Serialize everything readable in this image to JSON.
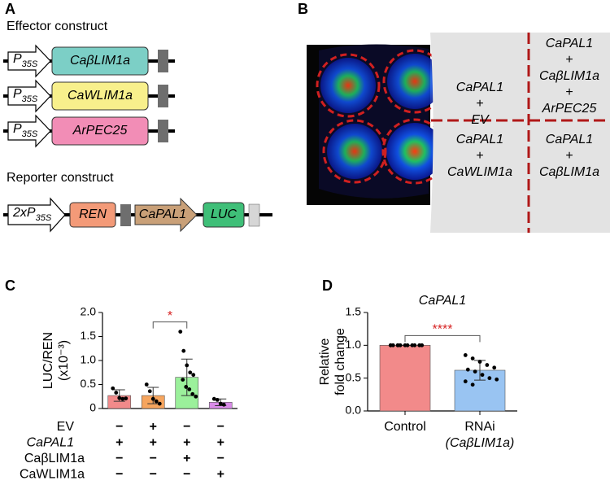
{
  "panel_a": {
    "label": "A",
    "effector_title": "Effector construct",
    "promoter": {
      "main": "P",
      "sub": "35S"
    },
    "effectors": [
      "CaβLIM1a",
      "CaWLIM1a",
      "ArPEC25"
    ],
    "reporter_title": "Reporter construct",
    "reporter_promoter": {
      "main": "2xP",
      "sub": "35S"
    },
    "reporter_parts": [
      "REN",
      "CaPAL1",
      "LUC"
    ]
  },
  "panel_b": {
    "label": "B",
    "cells": [
      [
        "CaPAL1",
        "+",
        "EV"
      ],
      [
        "CaPAL1",
        "+",
        "CaβLIM1a",
        "+",
        "ArPEC25"
      ],
      [
        "CaPAL1",
        "+",
        "CaWLIM1a"
      ],
      [
        "CaPAL1",
        "+",
        "CaβLIM1a"
      ]
    ]
  },
  "chart_data": [
    {
      "type": "bar",
      "panel_label": "C",
      "y_label": "LUC/REN",
      "y_label_2": "(x10⁻³)",
      "values": [
        0.27,
        0.27,
        0.65,
        0.13
      ],
      "errors": [
        0.12,
        0.17,
        0.38,
        0.07
      ],
      "colors": [
        "#f28a8a",
        "#f6a55e",
        "#9bf09b",
        "#d98be8"
      ],
      "points": [
        [
          0.42,
          0.33,
          0.22,
          0.2,
          0.21
        ],
        [
          0.5,
          0.36,
          0.2,
          0.15,
          0.1
        ],
        [
          1.6,
          1.2,
          0.9,
          0.75,
          0.7,
          0.6,
          0.45,
          0.4,
          0.3,
          0.25
        ],
        [
          0.2,
          0.18,
          0.1,
          0.08
        ]
      ],
      "conditions": [
        {
          "name": "EV",
          "signs": [
            "−",
            "+",
            "−",
            "−"
          ]
        },
        {
          "name": "CaPAL1",
          "signs": [
            "+",
            "+",
            "+",
            "+"
          ]
        },
        {
          "name": "CaβLIM1a",
          "signs": [
            "−",
            "−",
            "+",
            "−"
          ]
        },
        {
          "name": "CaWLIM1a",
          "signs": [
            "−",
            "−",
            "−",
            "+"
          ]
        }
      ],
      "significance_label": "*",
      "ylim": [
        0,
        2
      ],
      "yticks": [
        0,
        0.5,
        {
          "value": 1,
          "label": "1.0"
        },
        1.5,
        {
          "value": 2,
          "label": "2.0"
        }
      ]
    },
    {
      "type": "bar",
      "panel_label": "D",
      "title": "CaPAL1",
      "y_label": "Relative",
      "y_label_2": "fold change",
      "categories": [
        "Control",
        "RNAi"
      ],
      "category_notes": [
        null,
        "(CaβLIM1a)"
      ],
      "values": [
        1.0,
        0.62
      ],
      "errors": [
        0,
        0.15
      ],
      "colors": [
        "#f28a8a",
        "#99c4f2"
      ],
      "points": [
        [
          1,
          1,
          1,
          1,
          1,
          1,
          1,
          1,
          1,
          1,
          1,
          1
        ],
        [
          0.85,
          0.8,
          0.75,
          0.7,
          0.66,
          0.63,
          0.6,
          0.55,
          0.5,
          0.48,
          0.45,
          0.4
        ]
      ],
      "significance_label": "****",
      "ylim": [
        0,
        1.5
      ],
      "yticks": [
        {
          "value": 0,
          "label": "0.0"
        },
        {
          "value": 0.5,
          "label": "0.5"
        },
        {
          "value": 1,
          "label": "1.0"
        },
        {
          "value": 1.5,
          "label": "1.5"
        }
      ]
    }
  ]
}
